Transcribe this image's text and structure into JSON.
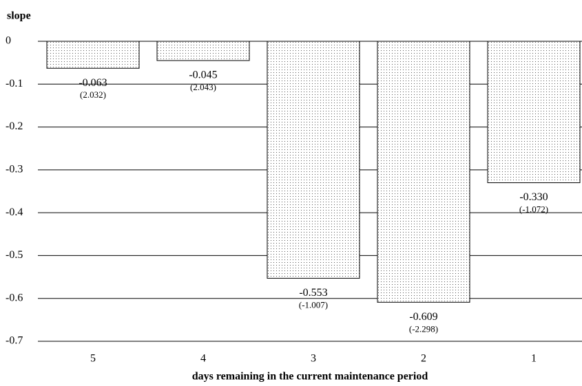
{
  "chart_data": {
    "type": "bar",
    "y_label": "slope",
    "x_label": "days remaining in the current maintenance period",
    "categories": [
      "5",
      "4",
      "3",
      "2",
      "1"
    ],
    "values": [
      -0.063,
      -0.045,
      -0.553,
      -0.609,
      -0.33
    ],
    "value_labels": [
      "-0.063",
      "-0.045",
      "-0.553",
      "-0.609",
      "-0.330"
    ],
    "t_labels": [
      "(2.032)",
      "(2.043)",
      "(-1.007)",
      "(-2.298)",
      "(-1.072)"
    ],
    "ylim": [
      -0.7,
      0
    ],
    "yticks": [
      0,
      -0.1,
      -0.2,
      -0.3,
      -0.4,
      -0.5,
      -0.6,
      -0.7
    ],
    "grid": true,
    "color": "#555555"
  }
}
